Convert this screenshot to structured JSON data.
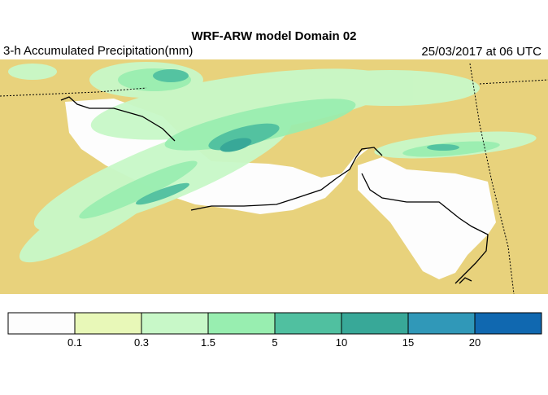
{
  "header": {
    "title": "WRF-ARW model Domain 02",
    "subtitle": "3-h Accumulated Precipitation(mm)",
    "valid_time": "25/03/2017 at 06 UTC"
  },
  "map": {
    "land_color": "#E8D27C",
    "coast_color": "#000000",
    "boundary_style": "dotted"
  },
  "colorbar": {
    "colors": [
      "#FDFDFD",
      "#E8F8B8",
      "#C8F8C8",
      "#98EEB0",
      "#50C0A0",
      "#38A898",
      "#3098B8",
      "#1068B0"
    ],
    "tick_labels": [
      "0.1",
      "0.3",
      "1.5",
      "5",
      "10",
      "15",
      "20"
    ]
  }
}
